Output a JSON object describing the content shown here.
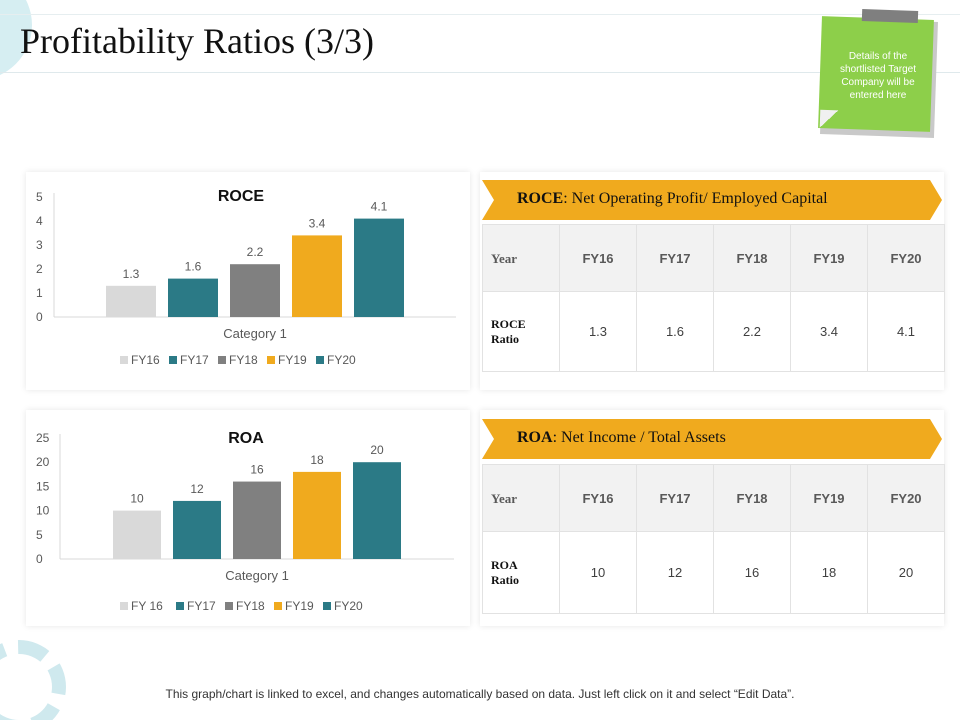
{
  "page": {
    "title": "Profitability Ratios (3/3)"
  },
  "sticky_note": {
    "text": "Details of the shortlisted Target Company will be entered here"
  },
  "chart_data": [
    {
      "type": "bar",
      "title": "ROCE",
      "xlabel": "Category 1",
      "categories": [
        "Category 1"
      ],
      "series": [
        {
          "name": "FY16",
          "values": [
            1.3
          ],
          "color": "#d9d9d9"
        },
        {
          "name": "FY17",
          "values": [
            1.6
          ],
          "color": "#2b7a86"
        },
        {
          "name": "FY18",
          "values": [
            2.2
          ],
          "color": "#808080"
        },
        {
          "name": "FY19",
          "values": [
            3.4
          ],
          "color": "#f0aa1e"
        },
        {
          "name": "FY20",
          "values": [
            4.1
          ],
          "color": "#2b7a86"
        }
      ],
      "ylim": [
        0,
        5
      ],
      "yticks": [
        0,
        1,
        2,
        3,
        4,
        5
      ],
      "legend": "bottom",
      "grid": false
    },
    {
      "type": "bar",
      "title": "ROA",
      "xlabel": "Category 1",
      "categories": [
        "Category 1"
      ],
      "series": [
        {
          "name": "FY 16",
          "values": [
            10
          ],
          "color": "#d9d9d9"
        },
        {
          "name": "FY17",
          "values": [
            12
          ],
          "color": "#2b7a86"
        },
        {
          "name": "FY18",
          "values": [
            16
          ],
          "color": "#808080"
        },
        {
          "name": "FY19",
          "values": [
            18
          ],
          "color": "#f0aa1e"
        },
        {
          "name": "FY20",
          "values": [
            20
          ],
          "color": "#2b7a86"
        }
      ],
      "ylim": [
        0,
        25
      ],
      "yticks": [
        0,
        5,
        10,
        15,
        20,
        25
      ],
      "legend": "bottom",
      "grid": false
    }
  ],
  "roce_section": {
    "banner_bold": "ROCE",
    "banner_rest": ": Net Operating Profit/ Employed Capital",
    "header_label": "Year",
    "years": [
      "FY16",
      "FY17",
      "FY18",
      "FY19",
      "FY20"
    ],
    "row_label_line1": "ROCE",
    "row_label_line2": "Ratio",
    "values": [
      "1.3",
      "1.6",
      "2.2",
      "3.4",
      "4.1"
    ]
  },
  "roa_section": {
    "banner_bold": "ROA",
    "banner_rest": ": Net Income / Total Assets",
    "header_label": "Year",
    "years": [
      "FY16",
      "FY17",
      "FY18",
      "FY19",
      "FY20"
    ],
    "row_label_line1": "ROA",
    "row_label_line2": "Ratio",
    "values": [
      "10",
      "12",
      "16",
      "18",
      "20"
    ]
  },
  "footer": {
    "text": "This graph/chart is linked to excel, and changes automatically based on data. Just left click on it and select “Edit Data”."
  },
  "colors": {
    "accent_orange": "#f0aa1e",
    "teal": "#2b7a86",
    "gray": "#808080",
    "light_gray": "#d9d9d9",
    "sticky_green": "#8dcf4a"
  }
}
